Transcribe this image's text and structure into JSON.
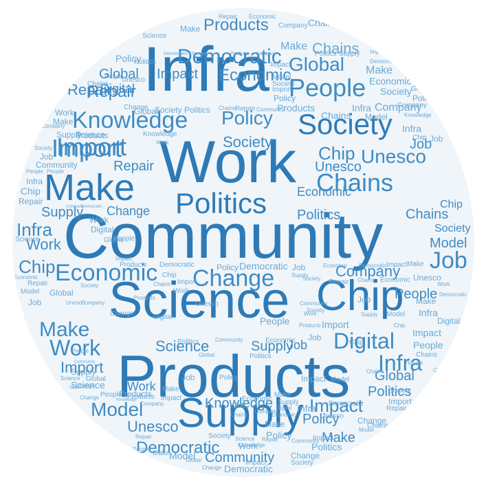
{
  "colors": {
    "background": "#ffffff",
    "disc": "#f0f5f9",
    "word_dark": "#2e7ab6",
    "word_mid": "#3f8bc4",
    "word_light": "#6aa9d6"
  },
  "words": [
    {
      "text": "Community",
      "tier": 1
    },
    {
      "text": "Products",
      "tier": 1
    },
    {
      "text": "Work",
      "tier": 1
    },
    {
      "text": "Infra",
      "tier": 1
    },
    {
      "text": "Science",
      "tier": 1
    },
    {
      "text": "Supply",
      "tier": 2
    },
    {
      "text": "Chip",
      "tier": 2
    },
    {
      "text": "Make",
      "tier": 2
    },
    {
      "text": "Politics",
      "tier": 2
    },
    {
      "text": "Society",
      "tier": 2
    },
    {
      "text": "Knowledge",
      "tier": 2
    },
    {
      "text": "Import",
      "tier": 2
    },
    {
      "text": "Chains",
      "tier": 2
    },
    {
      "text": "Economic",
      "tier": 2
    },
    {
      "text": "Change",
      "tier": 2
    },
    {
      "text": "Digital",
      "tier": 2
    },
    {
      "text": "People",
      "tier": 2
    },
    {
      "text": "Unesco",
      "tier": 2
    },
    {
      "text": "Democratic",
      "tier": 2
    },
    {
      "text": "Policy",
      "tier": 2
    },
    {
      "text": "Global",
      "tier": 2
    },
    {
      "text": "Job",
      "tier": 2
    },
    {
      "text": "Impact",
      "tier": 2
    },
    {
      "text": "Model",
      "tier": 3
    },
    {
      "text": "Repair",
      "tier": 3
    },
    {
      "text": "Company",
      "tier": 3
    }
  ]
}
